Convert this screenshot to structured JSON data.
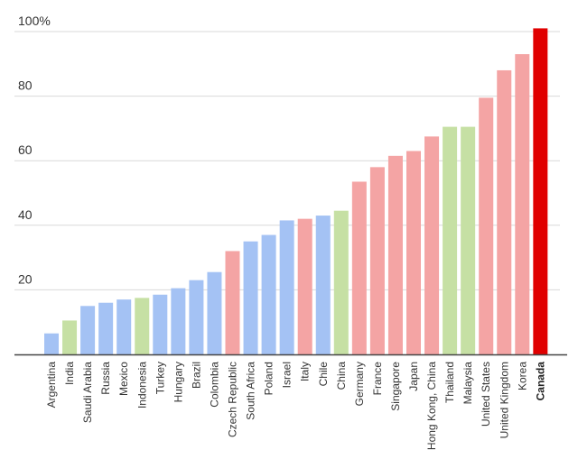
{
  "chart_data": {
    "type": "bar",
    "title": "",
    "xlabel": "",
    "ylabel": "",
    "ylim": [
      0,
      100
    ],
    "yticks": [
      {
        "value": 20,
        "label": "20"
      },
      {
        "value": 40,
        "label": "40"
      },
      {
        "value": 60,
        "label": "60"
      },
      {
        "value": 80,
        "label": "80"
      },
      {
        "value": 100,
        "label": "100%"
      }
    ],
    "grid": true,
    "colors": {
      "blue": "#a4c2f4",
      "green": "#c6e0a4",
      "pink": "#f4a4a4",
      "red": "#e00000"
    },
    "categories": [
      "Argentina",
      "India",
      "Saudi Arabia",
      "Russia",
      "Mexico",
      "Indonesia",
      "Turkey",
      "Hungary",
      "Brazil",
      "Colombia",
      "Czech Republic",
      "South Africa",
      "Poland",
      "Israel",
      "Italy",
      "Chile",
      "China",
      "Germany",
      "France",
      "Singapore",
      "Japan",
      "Hong Kong, China",
      "Thailand",
      "Malaysia",
      "United States",
      "United Kingdom",
      "Korea",
      "Canada"
    ],
    "values": [
      6.5,
      10.5,
      15,
      16,
      17,
      17.5,
      18.5,
      20.5,
      23,
      25.5,
      32,
      35,
      37,
      41.5,
      42,
      43,
      44.5,
      53.5,
      58,
      61.5,
      63,
      67.5,
      70.5,
      70.5,
      79.5,
      88,
      93,
      101
    ],
    "bar_colors": [
      "blue",
      "green",
      "blue",
      "blue",
      "blue",
      "green",
      "blue",
      "blue",
      "blue",
      "blue",
      "pink",
      "blue",
      "blue",
      "blue",
      "pink",
      "blue",
      "green",
      "pink",
      "pink",
      "pink",
      "pink",
      "pink",
      "green",
      "green",
      "pink",
      "pink",
      "pink",
      "red"
    ],
    "highlighted_category": "Canada"
  }
}
